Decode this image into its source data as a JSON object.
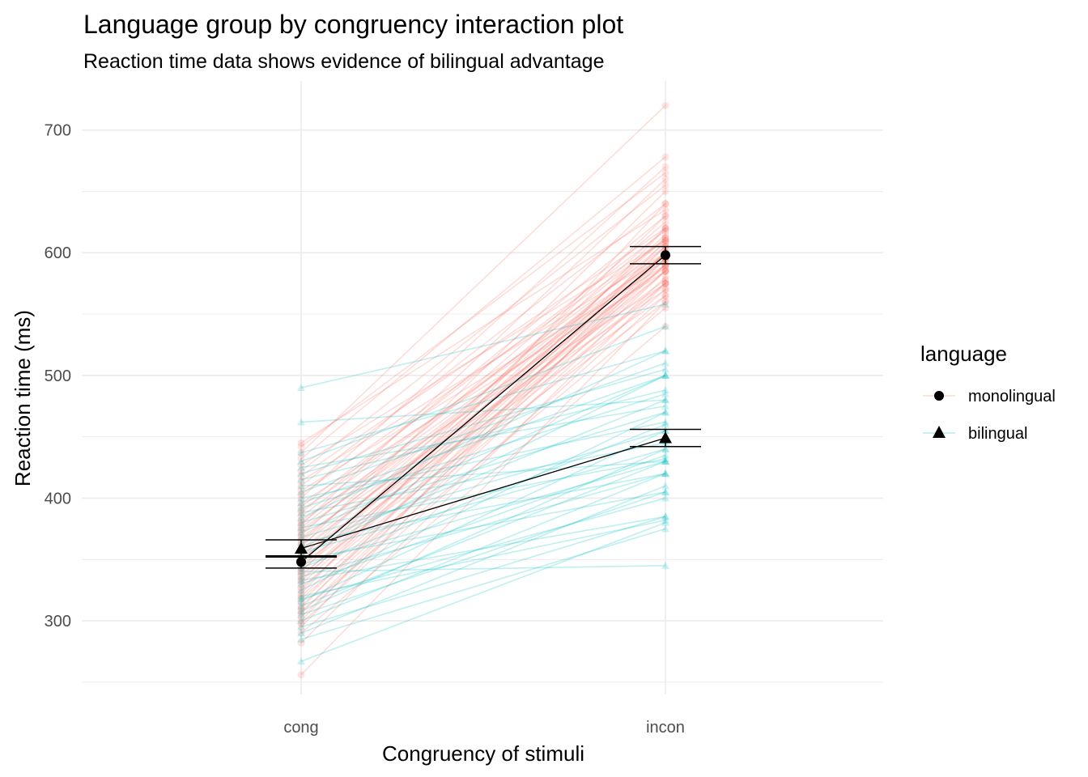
{
  "chart_data": {
    "type": "line",
    "title": "Language group by congruency interaction plot",
    "subtitle": "Reaction time data shows evidence of bilingual advantage",
    "xlabel": "Congruency of stimuli",
    "ylabel": "Reaction time (ms)",
    "categories": [
      "cong",
      "incon"
    ],
    "ylim": [
      240,
      740
    ],
    "yticks": [
      300,
      400,
      500,
      600,
      700
    ],
    "grid": true,
    "legend": {
      "title": "language",
      "position": "right",
      "entries": [
        {
          "label": "monolingual",
          "shape": "circle"
        },
        {
          "label": "bilingual",
          "shape": "triangle"
        }
      ]
    },
    "colors": {
      "monolingual": "#F8766D",
      "bilingual": "#00BFC4",
      "summary": "#000000",
      "grid": "#ebebeb",
      "tick_text": "#4d4d4d"
    },
    "series": [
      {
        "name": "monolingual",
        "mean": [
          348,
          598
        ],
        "ci_low": [
          343,
          591
        ],
        "ci_high": [
          353,
          605
        ],
        "subjects": [
          [
            256,
            560
          ],
          [
            282,
            575
          ],
          [
            290,
            540
          ],
          [
            295,
            600
          ],
          [
            298,
            565
          ],
          [
            300,
            610
          ],
          [
            303,
            580
          ],
          [
            306,
            595
          ],
          [
            308,
            555
          ],
          [
            310,
            620
          ],
          [
            312,
            585
          ],
          [
            315,
            600
          ],
          [
            318,
            570
          ],
          [
            320,
            590
          ],
          [
            322,
            640
          ],
          [
            325,
            605
          ],
          [
            327,
            575
          ],
          [
            330,
            595
          ],
          [
            332,
            615
          ],
          [
            334,
            585
          ],
          [
            336,
            600
          ],
          [
            338,
            560
          ],
          [
            340,
            630
          ],
          [
            341,
            590
          ],
          [
            343,
            605
          ],
          [
            345,
            575
          ],
          [
            347,
            612
          ],
          [
            349,
            598
          ],
          [
            350,
            585
          ],
          [
            352,
            620
          ],
          [
            354,
            565
          ],
          [
            356,
            600
          ],
          [
            358,
            590
          ],
          [
            360,
            650
          ],
          [
            362,
            578
          ],
          [
            364,
            608
          ],
          [
            366,
            595
          ],
          [
            368,
            570
          ],
          [
            370,
            625
          ],
          [
            372,
            600
          ],
          [
            374,
            588
          ],
          [
            376,
            612
          ],
          [
            378,
            660
          ],
          [
            380,
            595
          ],
          [
            382,
            575
          ],
          [
            385,
            605
          ],
          [
            388,
            630
          ],
          [
            390,
            598
          ],
          [
            393,
            618
          ],
          [
            396,
            585
          ],
          [
            400,
            670
          ],
          [
            403,
            610
          ],
          [
            406,
            590
          ],
          [
            410,
            640
          ],
          [
            414,
            600
          ],
          [
            418,
            620
          ],
          [
            422,
            655
          ],
          [
            427,
            610
          ],
          [
            432,
            678
          ],
          [
            437,
            720
          ],
          [
            442,
            665
          ],
          [
            445,
            635
          ]
        ]
      },
      {
        "name": "bilingual",
        "mean": [
          359,
          449
        ],
        "ci_low": [
          352,
          442
        ],
        "ci_high": [
          366,
          456
        ],
        "subjects": [
          [
            267,
            380
          ],
          [
            285,
            375
          ],
          [
            290,
            410
          ],
          [
            295,
            385
          ],
          [
            300,
            420
          ],
          [
            305,
            405
          ],
          [
            308,
            440
          ],
          [
            312,
            430
          ],
          [
            316,
            455
          ],
          [
            318,
            400
          ],
          [
            320,
            382
          ],
          [
            325,
            470
          ],
          [
            330,
            435
          ],
          [
            333,
            385
          ],
          [
            336,
            420
          ],
          [
            340,
            345
          ],
          [
            343,
            460
          ],
          [
            346,
            430
          ],
          [
            350,
            405
          ],
          [
            353,
            500
          ],
          [
            356,
            440
          ],
          [
            360,
            480
          ],
          [
            364,
            420
          ],
          [
            368,
            455
          ],
          [
            372,
            500
          ],
          [
            376,
            432
          ],
          [
            380,
            470
          ],
          [
            384,
            520
          ],
          [
            388,
            445
          ],
          [
            392,
            485
          ],
          [
            396,
            500
          ],
          [
            400,
            462
          ],
          [
            405,
            510
          ],
          [
            410,
            430
          ],
          [
            415,
            488
          ],
          [
            420,
            505
          ],
          [
            425,
            475
          ],
          [
            430,
            540
          ],
          [
            437,
            520
          ],
          [
            462,
            480
          ],
          [
            490,
            558
          ]
        ]
      }
    ]
  }
}
